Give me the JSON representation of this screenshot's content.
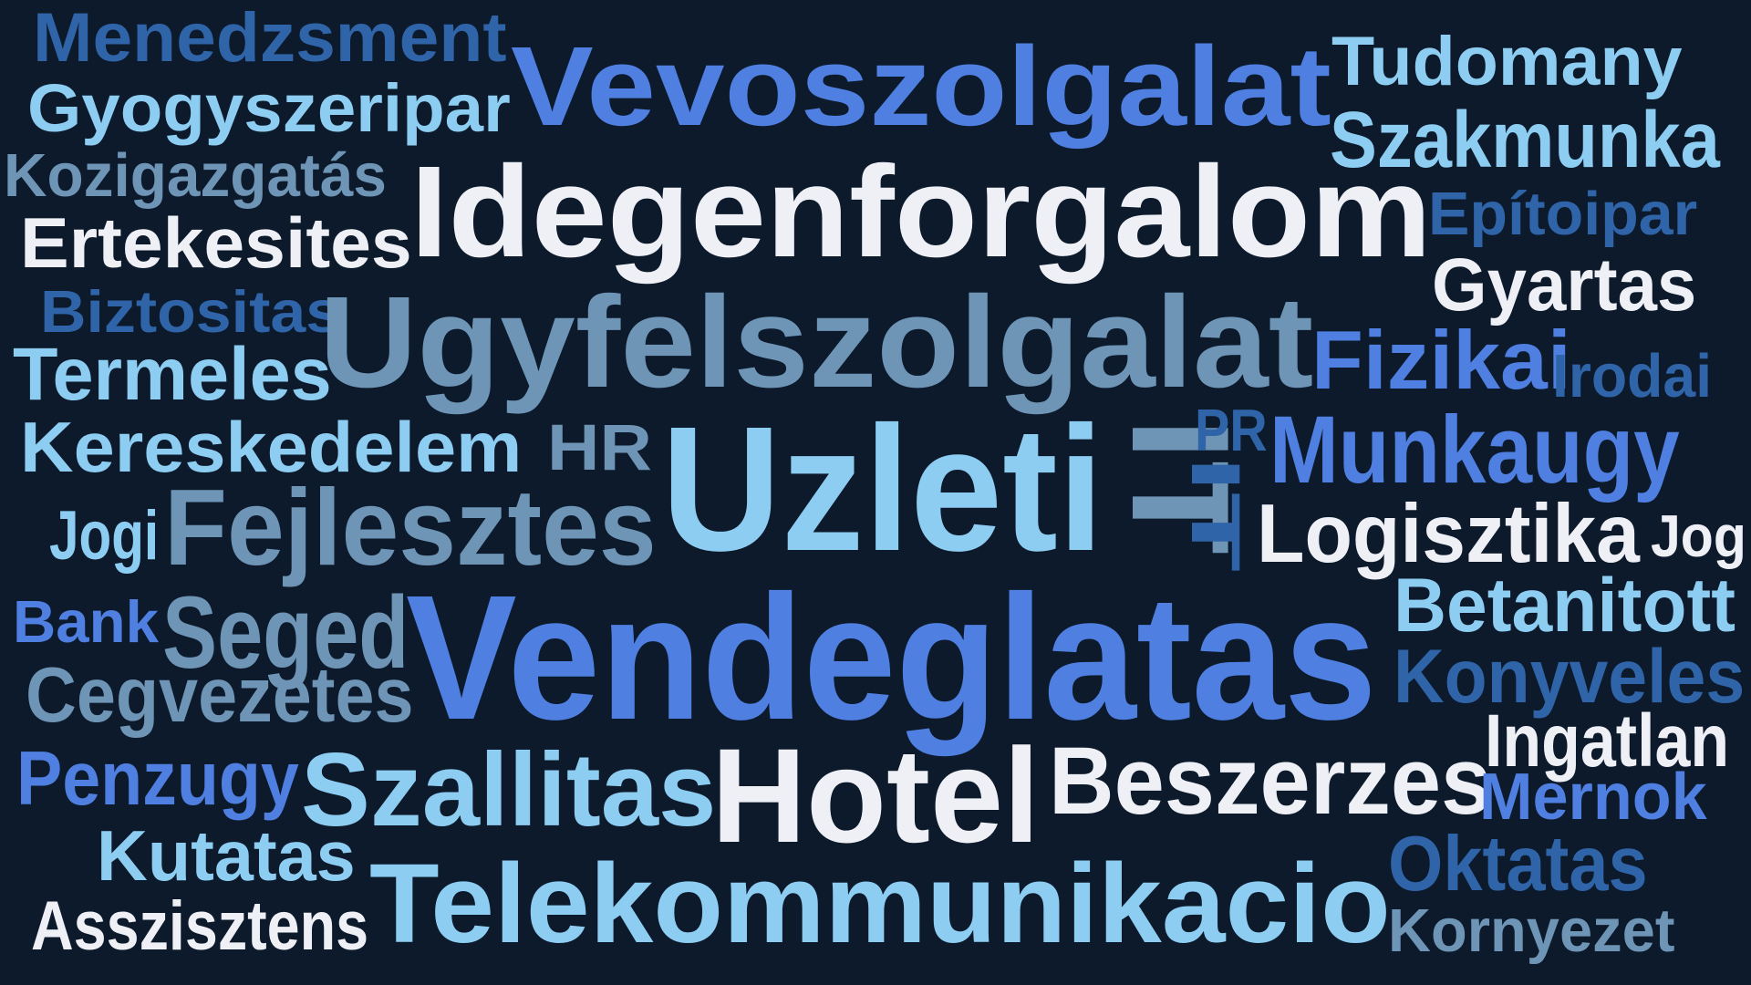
{
  "colors": {
    "background": "#0c1a2b",
    "white": "#eef0f6",
    "royal": "#4f7fe0",
    "sky": "#8ecdf2",
    "steel": "#6e94b6",
    "navy": "#2f64a8"
  },
  "words": [
    {
      "text": "Menedzsment",
      "color": "navy"
    },
    {
      "text": "Gyogyszeripar",
      "color": "sky"
    },
    {
      "text": "Kozigazgatás",
      "color": "steel"
    },
    {
      "text": "Ertekesites",
      "color": "white"
    },
    {
      "text": "Biztositas",
      "color": "navy"
    },
    {
      "text": "Termeles",
      "color": "sky"
    },
    {
      "text": "Kereskedelem",
      "color": "sky"
    },
    {
      "text": "Jogi",
      "color": "sky"
    },
    {
      "text": "Bank",
      "color": "royal"
    },
    {
      "text": "Cegvezetes",
      "color": "steel"
    },
    {
      "text": "Penzugy",
      "color": "royal"
    },
    {
      "text": "Kutatas",
      "color": "sky"
    },
    {
      "text": "Asszisztens",
      "color": "white"
    },
    {
      "text": "Vevoszolgalat",
      "color": "royal"
    },
    {
      "text": "Idegenforgalom",
      "color": "white"
    },
    {
      "text": "Ugyfelszolgalat",
      "color": "steel"
    },
    {
      "text": "HR",
      "color": "steel"
    },
    {
      "text": "Uzleti",
      "color": "sky"
    },
    {
      "text": "IT",
      "color": "steel"
    },
    {
      "text": "PR",
      "color": "navy"
    },
    {
      "text": "IT",
      "color": "navy"
    },
    {
      "text": "Fejlesztes",
      "color": "steel"
    },
    {
      "text": "Seged",
      "color": "steel"
    },
    {
      "text": "Vendeglatas",
      "color": "royal"
    },
    {
      "text": "Szallitas",
      "color": "sky"
    },
    {
      "text": "Hotel",
      "color": "white"
    },
    {
      "text": "Beszerzes",
      "color": "white"
    },
    {
      "text": "Telekommunikacio",
      "color": "sky"
    },
    {
      "text": "Tudomany",
      "color": "sky"
    },
    {
      "text": "Szakmunka",
      "color": "sky"
    },
    {
      "text": "Epítoipar",
      "color": "navy"
    },
    {
      "text": "Gyartas",
      "color": "white"
    },
    {
      "text": "Fizikai",
      "color": "royal"
    },
    {
      "text": "Irodai",
      "color": "navy"
    },
    {
      "text": "Munkaugy",
      "color": "royal"
    },
    {
      "text": "Logisztika",
      "color": "white"
    },
    {
      "text": "Jog",
      "color": "white"
    },
    {
      "text": "Betanitott",
      "color": "sky"
    },
    {
      "text": "Konyveles",
      "color": "navy"
    },
    {
      "text": "Ingatlan",
      "color": "white"
    },
    {
      "text": "Mernok",
      "color": "royal"
    },
    {
      "text": "Oktatas",
      "color": "navy"
    },
    {
      "text": "Kornyezet",
      "color": "steel"
    }
  ]
}
